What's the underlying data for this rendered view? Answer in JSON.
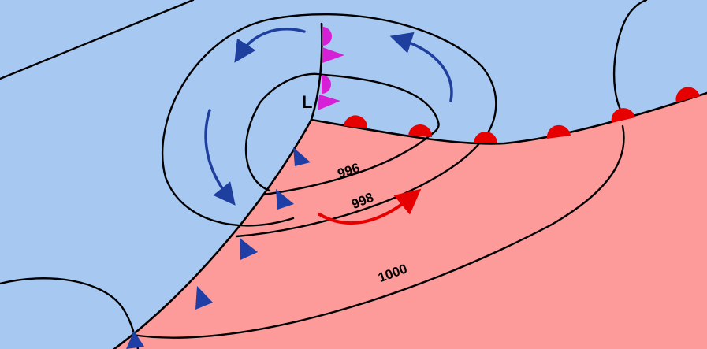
{
  "map": {
    "low_label": "L",
    "isobar_labels": [
      "996",
      "998",
      "1000"
    ]
  },
  "colors": {
    "cold_air": "#a7c8f0",
    "warm_air": "#fd9a9a",
    "cold_front": "#1f3fa7",
    "warm_front": "#e60000",
    "occluded_front": "#d620d6",
    "cold_circulation": "#1f3f9f",
    "warm_circulation": "#e60000"
  },
  "icons": {
    "cold_front_symbol": "blue-triangle",
    "warm_front_symbol": "red-semicircle",
    "occluded_front_symbol": "magenta-triangle-semicircle",
    "circulation": "curved-arrow"
  }
}
